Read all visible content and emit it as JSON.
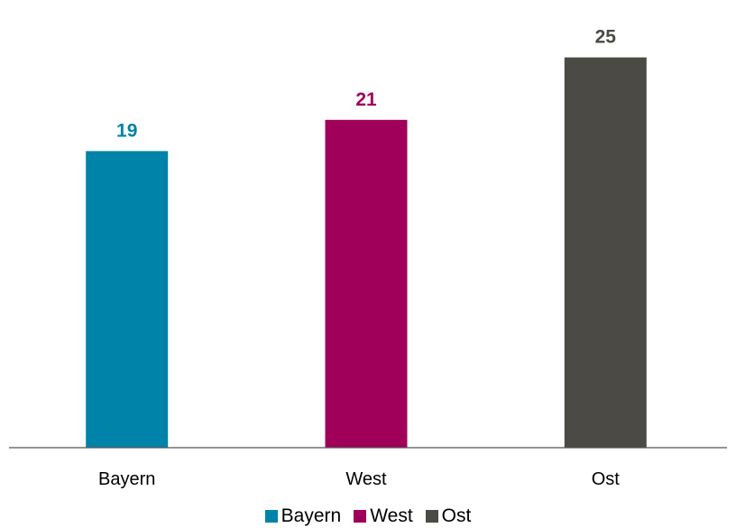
{
  "chart_data": {
    "type": "bar",
    "categories": [
      "Bayern",
      "West",
      "Ost"
    ],
    "values": [
      19,
      21,
      25
    ],
    "colors": [
      "#0083A9",
      "#A0005A",
      "#4B4A44"
    ],
    "data_labels": [
      "19",
      "21",
      "25"
    ],
    "ylim": [
      0,
      25.9
    ],
    "grid": false,
    "legend": {
      "placement": "bottom",
      "entries": [
        "Bayern",
        "West",
        "Ost"
      ]
    }
  }
}
